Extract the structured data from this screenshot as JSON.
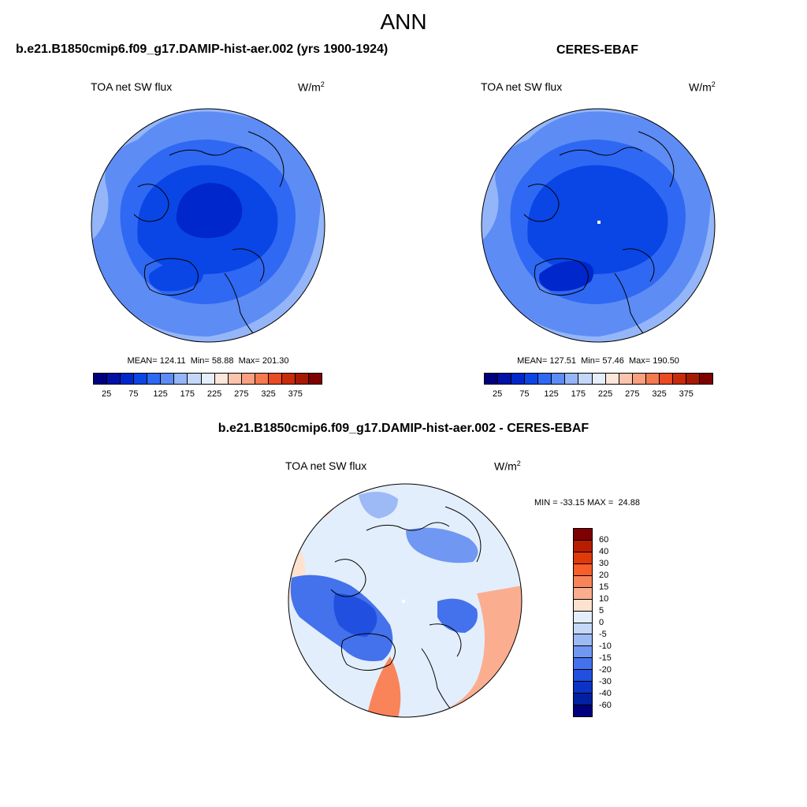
{
  "figure": {
    "main_title": "ANN",
    "var_label": "TOA net SW flux",
    "units_base": "W/m",
    "units_exp": "2"
  },
  "panels": [
    {
      "id": "model",
      "title": "b.e21.B1850cmip6.f09_g17.DAMIP-hist-aer.002 (yrs 1900-1924)",
      "mean_label": "MEAN=",
      "mean": "124.11",
      "min_label": "Min=",
      "min": "58.88",
      "max_label": "Max=",
      "max": "201.30",
      "fill_mean_value": 124.11
    },
    {
      "id": "obs",
      "title": "CERES-EBAF",
      "mean_label": "MEAN=",
      "mean": "127.51",
      "min_label": "Min=",
      "min": "57.46",
      "max_label": "Max=",
      "max": "190.50",
      "fill_mean_value": 127.51
    },
    {
      "id": "diff",
      "title": "b.e21.B1850cmip6.f09_g17.DAMIP-hist-aer.002 - CERES-EBAF",
      "min_label": "MIN =",
      "min": "-33.15",
      "max_label": "MAX =",
      "max": "24.88"
    }
  ],
  "colorbar_abs": {
    "colors": [
      "#00007f",
      "#0011a8",
      "#0027cc",
      "#0a46e6",
      "#2f68f2",
      "#5d8cf5",
      "#94b6f8",
      "#c4d7fa",
      "#e5eefc",
      "#fde6da",
      "#fbc4ad",
      "#f8a07f",
      "#f47a50",
      "#ea4b22",
      "#c82b0c",
      "#a51a04",
      "#7f0000"
    ],
    "tick_labels": [
      "25",
      "75",
      "125",
      "175",
      "225",
      "275",
      "325",
      "375"
    ]
  },
  "colorbar_diff": {
    "colors": [
      "#7f0000",
      "#b81d00",
      "#e0390a",
      "#f85e2a",
      "#f9845a",
      "#fbae8f",
      "#fde3cf",
      "#e3eefc",
      "#c5d8fa",
      "#9db9f6",
      "#7097f2",
      "#4472ec",
      "#2150e0",
      "#0b34c6",
      "#0220a2",
      "#00007f"
    ],
    "tick_labels": [
      "60",
      "40",
      "30",
      "20",
      "15",
      "10",
      "5",
      "0",
      "-5",
      "-10",
      "-15",
      "-20",
      "-30",
      "-40",
      "-60"
    ]
  },
  "chart_data": [
    {
      "type": "heatmap",
      "projection": "north polar stereographic",
      "title": "b.e21.B1850cmip6.f09_g17.DAMIP-hist-aer.002 (yrs 1900-1924)",
      "variable": "TOA net SW flux",
      "units": "W/m2",
      "mean": 124.11,
      "min": 58.88,
      "max": 201.3,
      "contour_levels": [
        25,
        50,
        75,
        100,
        125,
        150,
        175,
        200,
        225,
        250,
        275,
        300,
        325,
        350,
        375
      ]
    },
    {
      "type": "heatmap",
      "projection": "north polar stereographic",
      "title": "CERES-EBAF",
      "variable": "TOA net SW flux",
      "units": "W/m2",
      "mean": 127.51,
      "min": 57.46,
      "max": 190.5,
      "contour_levels": [
        25,
        50,
        75,
        100,
        125,
        150,
        175,
        200,
        225,
        250,
        275,
        300,
        325,
        350,
        375
      ]
    },
    {
      "type": "heatmap",
      "projection": "north polar stereographic",
      "title": "b.e21.B1850cmip6.f09_g17.DAMIP-hist-aer.002 - CERES-EBAF",
      "variable": "TOA net SW flux",
      "units": "W/m2",
      "min": -33.15,
      "max": 24.88,
      "contour_levels": [
        -60,
        -40,
        -30,
        -20,
        -15,
        -10,
        -5,
        0,
        5,
        10,
        15,
        20,
        30,
        40,
        60
      ]
    }
  ]
}
